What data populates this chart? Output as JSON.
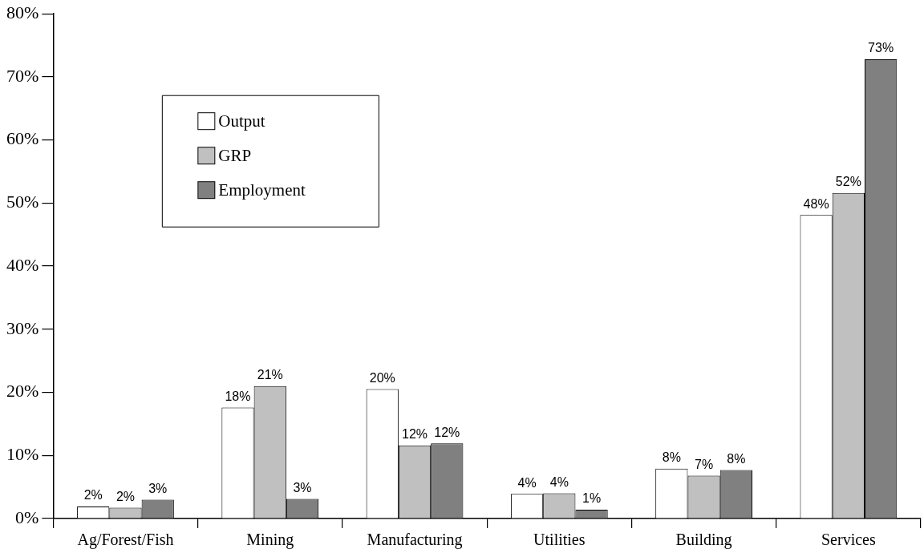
{
  "chart_data": {
    "type": "bar",
    "categories": [
      "Ag/Forest/Fish",
      "Mining",
      "Manufacturing",
      "Utilities",
      "Building",
      "Services"
    ],
    "series": [
      {
        "name": "Output",
        "color": "#ffffff",
        "values": [
          1.9,
          17.6,
          20.5,
          3.9,
          7.9,
          48.1
        ],
        "value_labels": [
          "2%",
          "18%",
          "20%",
          "4%",
          "8%",
          "48%"
        ]
      },
      {
        "name": "GRP",
        "color": "#c0c0c0",
        "values": [
          1.7,
          21.0,
          11.6,
          4.0,
          6.8,
          51.6
        ],
        "value_labels": [
          "2%",
          "21%",
          "12%",
          "4%",
          "7%",
          "52%"
        ]
      },
      {
        "name": "Employment",
        "color": "#808080",
        "values": [
          3.0,
          3.1,
          11.9,
          1.4,
          7.7,
          72.8
        ],
        "value_labels": [
          "3%",
          "3%",
          "12%",
          "1%",
          "8%",
          "73%"
        ]
      }
    ],
    "ylim": [
      0,
      80
    ],
    "yticks": [
      {
        "value": 0,
        "label": "0%"
      },
      {
        "value": 10,
        "label": "10%"
      },
      {
        "value": 20,
        "label": "20%"
      },
      {
        "value": 30,
        "label": "30%"
      },
      {
        "value": 40,
        "label": "40%"
      },
      {
        "value": 50,
        "label": "50%"
      },
      {
        "value": 60,
        "label": "60%"
      },
      {
        "value": 70,
        "label": "70%"
      },
      {
        "value": 80,
        "label": "80%"
      }
    ],
    "legend": "top left",
    "grid": false
  }
}
